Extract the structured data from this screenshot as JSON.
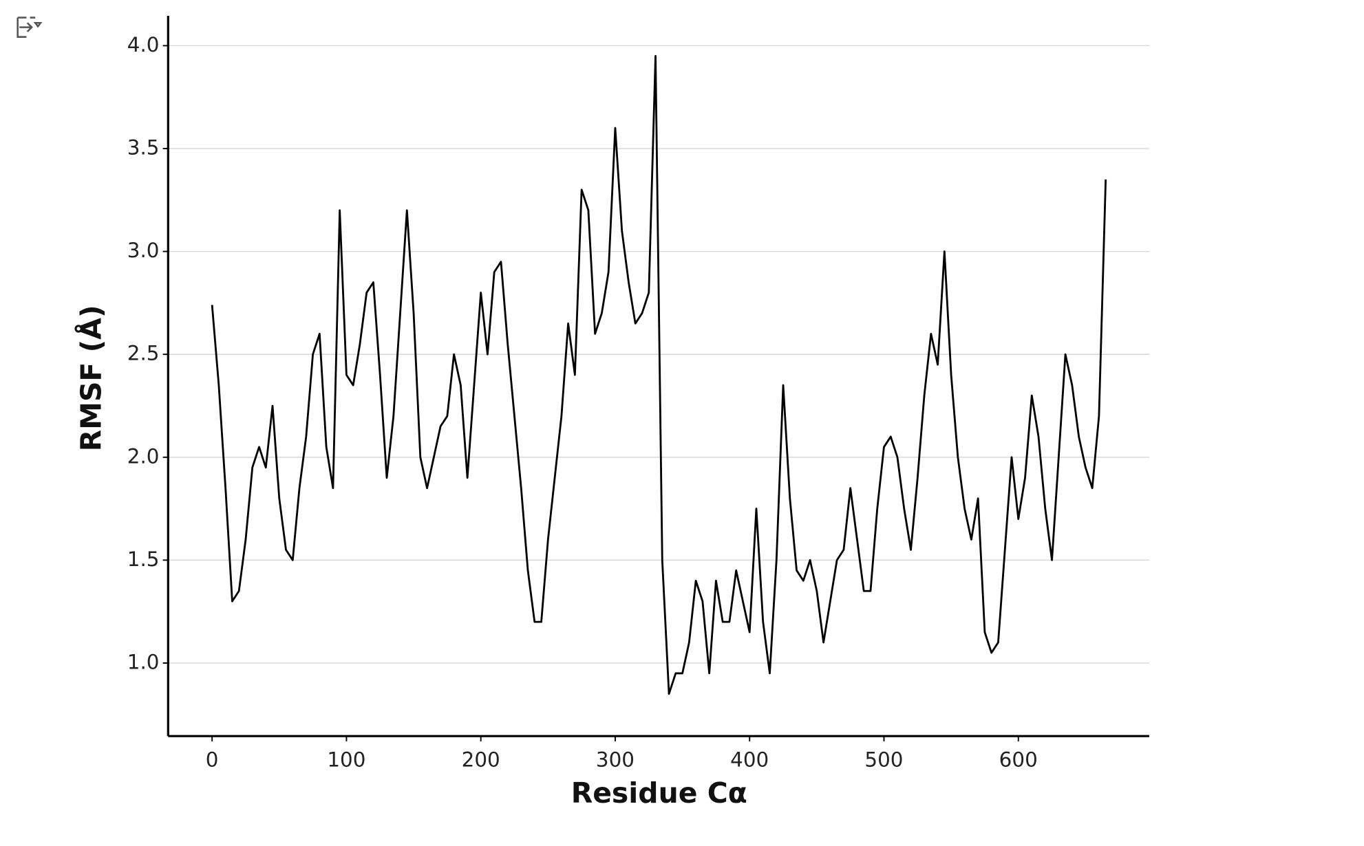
{
  "chart_data": {
    "type": "line",
    "xlabel": "Residue Cα",
    "ylabel": "RMSF (Å)",
    "x": [
      0,
      5,
      10,
      15,
      20,
      25,
      30,
      35,
      40,
      45,
      50,
      55,
      60,
      65,
      70,
      75,
      80,
      85,
      90,
      95,
      100,
      105,
      110,
      115,
      120,
      125,
      130,
      135,
      140,
      145,
      150,
      155,
      160,
      165,
      170,
      175,
      180,
      185,
      190,
      195,
      200,
      205,
      210,
      215,
      220,
      225,
      230,
      235,
      240,
      245,
      250,
      255,
      260,
      265,
      270,
      275,
      280,
      285,
      290,
      295,
      300,
      305,
      310,
      315,
      320,
      325,
      330,
      335,
      340,
      345,
      350,
      355,
      360,
      365,
      370,
      375,
      380,
      385,
      390,
      395,
      400,
      405,
      410,
      415,
      420,
      425,
      430,
      435,
      440,
      445,
      450,
      455,
      460,
      465,
      470,
      475,
      480,
      485,
      490,
      495,
      500,
      505,
      510,
      515,
      520,
      525,
      530,
      535,
      540,
      545,
      550,
      555,
      560,
      565,
      570,
      575,
      580,
      585,
      590,
      595,
      600,
      605,
      610,
      615,
      620,
      625,
      630,
      635,
      640,
      645,
      650,
      655,
      660,
      665
    ],
    "series": [
      {
        "color": "#000000",
        "values": [
          2.74,
          2.35,
          1.85,
          1.3,
          1.35,
          1.6,
          1.95,
          2.05,
          1.95,
          2.25,
          1.8,
          1.55,
          1.5,
          1.85,
          2.1,
          2.5,
          2.6,
          2.05,
          1.85,
          3.2,
          2.4,
          2.35,
          2.55,
          2.8,
          2.85,
          2.4,
          1.9,
          2.2,
          2.7,
          3.2,
          2.7,
          2.0,
          1.85,
          2.0,
          2.15,
          2.2,
          2.5,
          2.35,
          1.9,
          2.35,
          2.8,
          2.5,
          2.9,
          2.95,
          2.55,
          2.2,
          1.85,
          1.45,
          1.2,
          1.2,
          1.6,
          1.9,
          2.2,
          2.65,
          2.4,
          3.3,
          3.2,
          2.6,
          2.7,
          2.9,
          3.6,
          3.1,
          2.85,
          2.65,
          2.7,
          2.8,
          3.95,
          1.5,
          0.85,
          0.95,
          0.95,
          1.1,
          1.4,
          1.3,
          0.95,
          1.4,
          1.2,
          1.2,
          1.45,
          1.3,
          1.15,
          1.75,
          1.2,
          0.95,
          1.5,
          2.35,
          1.8,
          1.45,
          1.4,
          1.5,
          1.35,
          1.1,
          1.3,
          1.5,
          1.55,
          1.85,
          1.6,
          1.35,
          1.35,
          1.75,
          2.05,
          2.1,
          2.0,
          1.75,
          1.55,
          1.9,
          2.3,
          2.6,
          2.45,
          3.0,
          2.4,
          2.0,
          1.75,
          1.6,
          1.8,
          1.15,
          1.05,
          1.1,
          1.55,
          2.0,
          1.7,
          1.9,
          2.3,
          2.1,
          1.75,
          1.5,
          2.0,
          2.5,
          2.35,
          2.1,
          1.95,
          1.85,
          2.2,
          3.35
        ]
      }
    ],
    "xlim": [
      -32.7,
      697.4
    ],
    "ylim": [
      0.645,
      4.145
    ],
    "xticks": [
      0,
      100,
      200,
      300,
      400,
      500,
      600
    ],
    "yticks": [
      {
        "value": 1.0,
        "label": "1.0"
      },
      {
        "value": 1.5,
        "label": "1.5"
      },
      {
        "value": 2.0,
        "label": "2.0"
      },
      {
        "value": 2.5,
        "label": "2.5"
      },
      {
        "value": 3.0,
        "label": "3.0"
      },
      {
        "value": 3.5,
        "label": "3.5"
      },
      {
        "value": 4.0,
        "label": "4.0"
      }
    ],
    "grid": true
  }
}
